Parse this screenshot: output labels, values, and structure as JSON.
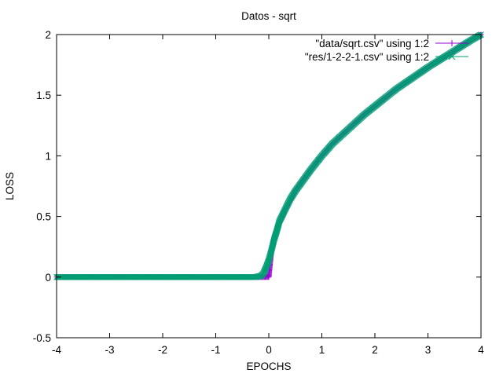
{
  "chart_data": {
    "type": "scatter",
    "title": "Datos - sqrt",
    "xlabel": "EPOCHS",
    "ylabel": "LOSS",
    "xlim": [
      -4,
      4
    ],
    "ylim": [
      -0.5,
      2
    ],
    "x_ticks": [
      -4,
      -3,
      -2,
      -1,
      0,
      1,
      2,
      3,
      4
    ],
    "x_tick_labels": [
      "-4",
      "-3",
      "-2",
      "-1",
      "0",
      "1",
      "2",
      "3",
      "4"
    ],
    "y_ticks": [
      -0.5,
      0,
      0.5,
      1,
      1.5,
      2
    ],
    "y_tick_labels": [
      "-0.5",
      "0",
      "0.5",
      "1",
      "1.5",
      "2"
    ],
    "grid": false,
    "legend_position": "top-right",
    "series": [
      {
        "name": "\"data/sqrt.csv\" using 1:2",
        "color": "#9400d3",
        "marker": "plus",
        "x": [
          -4.0,
          -3.5,
          -3.0,
          -2.5,
          -2.0,
          -1.5,
          -1.0,
          -0.5,
          -0.25,
          0.0,
          0.05,
          0.1,
          0.15,
          0.2,
          0.3,
          0.4,
          0.5,
          0.6,
          0.8,
          1.0,
          1.2,
          1.5,
          1.8,
          2.0,
          2.4,
          2.8,
          3.0,
          3.4,
          3.8,
          4.0
        ],
        "y": [
          0.0,
          0.0,
          0.0,
          0.0,
          0.0,
          0.0,
          0.0,
          0.0,
          0.0,
          0.0,
          0.22,
          0.32,
          0.39,
          0.45,
          0.55,
          0.63,
          0.71,
          0.77,
          0.89,
          1.0,
          1.1,
          1.22,
          1.34,
          1.41,
          1.55,
          1.67,
          1.73,
          1.84,
          1.95,
          2.0
        ]
      },
      {
        "name": "\"res/1-2-2-1.csv\" using 1:2",
        "color": "#009e73",
        "marker": "x",
        "x": [
          -4.0,
          -3.5,
          -3.0,
          -2.5,
          -2.0,
          -1.5,
          -1.0,
          -0.5,
          -0.25,
          -0.15,
          -0.1,
          -0.05,
          0.0,
          0.05,
          0.1,
          0.15,
          0.2,
          0.3,
          0.4,
          0.5,
          0.6,
          0.8,
          1.0,
          1.2,
          1.5,
          1.8,
          2.0,
          2.4,
          2.8,
          3.0,
          3.4,
          3.8,
          4.0
        ],
        "y": [
          0.0,
          0.0,
          0.0,
          0.0,
          0.0,
          0.0,
          0.0,
          0.0,
          0.0,
          0.01,
          0.03,
          0.08,
          0.14,
          0.22,
          0.31,
          0.38,
          0.46,
          0.55,
          0.64,
          0.71,
          0.77,
          0.89,
          1.0,
          1.1,
          1.22,
          1.34,
          1.41,
          1.55,
          1.67,
          1.73,
          1.84,
          1.95,
          2.0
        ]
      }
    ]
  }
}
